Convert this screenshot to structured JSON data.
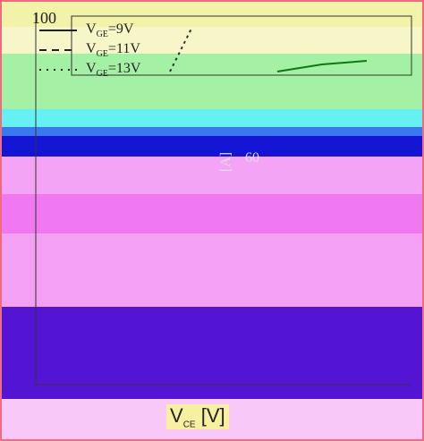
{
  "legend": [
    {
      "main": "V",
      "sub": "GE",
      "rest": "=9V"
    },
    {
      "main": "V",
      "sub": "GE",
      "rest": "=11V"
    },
    {
      "main": "V",
      "sub": "GE",
      "rest": "=13V"
    }
  ],
  "y_axis": {
    "label": "[A]",
    "ticks": [
      "100",
      "60"
    ]
  },
  "x_axis": {
    "main": "V",
    "sub": "CE",
    "rest": "[V]"
  }
}
